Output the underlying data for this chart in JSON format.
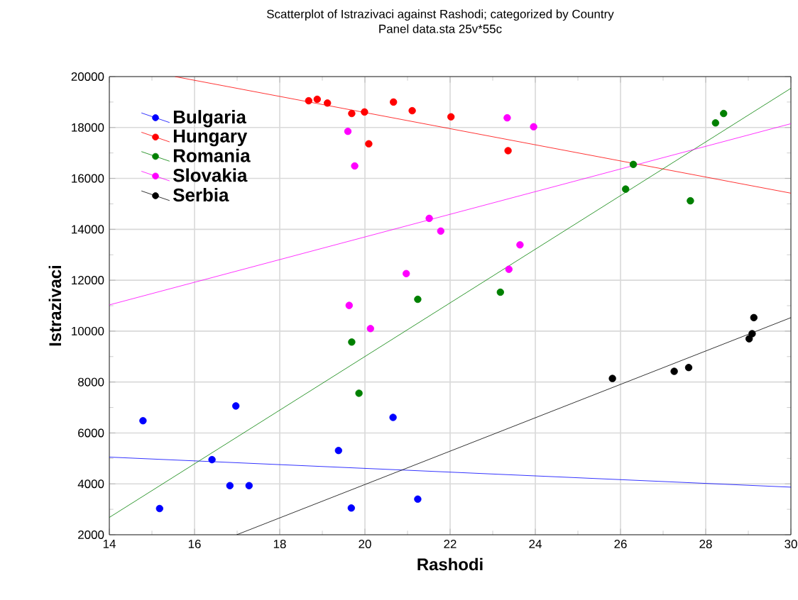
{
  "chart_data": {
    "type": "scatter",
    "title": "Scatterplot of Istrazivaci against Rashodi; categorized by Country",
    "subtitle": "Panel data.sta 25v*55c",
    "xlabel": "Rashodi",
    "ylabel": "Istrazivaci",
    "xlim": [
      14,
      30
    ],
    "ylim": [
      2000,
      20000
    ],
    "xticks": [
      14,
      16,
      18,
      20,
      22,
      24,
      26,
      28,
      30
    ],
    "yticks": [
      2000,
      4000,
      6000,
      8000,
      10000,
      12000,
      14000,
      16000,
      18000,
      20000
    ],
    "grid": true,
    "legend": "top left",
    "series": [
      {
        "name": "Bulgaria",
        "marker": "circle",
        "color": "#0000ff",
        "x": [
          14.79,
          15.18,
          16.41,
          16.83,
          16.97,
          17.28,
          19.38,
          19.68,
          20.66,
          21.24
        ],
        "values": [
          6480,
          3030,
          4950,
          3930,
          7060,
          3930,
          5310,
          3050,
          6610,
          3400
        ]
      },
      {
        "name": "Hungary",
        "marker": "circle",
        "color": "#ff0000",
        "x": [
          18.68,
          18.88,
          19.12,
          19.69,
          19.99,
          20.09,
          20.67,
          21.11,
          22.02,
          23.36
        ],
        "values": [
          19050,
          19110,
          18960,
          18550,
          18610,
          17360,
          19000,
          18660,
          18420,
          17090
        ]
      },
      {
        "name": "Romania",
        "marker": "circle",
        "color": "#008000",
        "x": [
          19.69,
          19.86,
          21.24,
          23.18,
          26.12,
          26.3,
          27.64,
          28.23,
          28.42
        ],
        "values": [
          9570,
          7560,
          11250,
          11530,
          15580,
          16550,
          15120,
          18180,
          18550
        ]
      },
      {
        "name": "Slovakia",
        "marker": "circle",
        "color": "#ff00ff",
        "x": [
          19.6,
          19.63,
          19.76,
          20.13,
          20.97,
          21.51,
          21.78,
          23.34,
          23.38,
          23.64,
          23.96
        ],
        "values": [
          17850,
          11010,
          16490,
          10100,
          12260,
          14430,
          13930,
          18380,
          12430,
          13390,
          18030
        ]
      },
      {
        "name": "Serbia",
        "marker": "circle",
        "color": "#000000",
        "x": [
          25.81,
          27.26,
          27.6,
          29.02,
          29.09,
          29.13
        ],
        "values": [
          8140,
          8420,
          8570,
          9700,
          9900,
          10530
        ]
      },
      {
        "type": "line",
        "marker": "none",
        "color": "#0000ff",
        "x": [
          14,
          30
        ],
        "values": [
          5050,
          3870
        ]
      },
      {
        "type": "line",
        "marker": "none",
        "color": "#ff0000",
        "x": [
          15.54,
          30
        ],
        "values": [
          20000,
          15420
        ]
      },
      {
        "type": "line",
        "marker": "none",
        "color": "#008000",
        "x": [
          14,
          30
        ],
        "values": [
          2680,
          19540
        ]
      },
      {
        "type": "line",
        "marker": "none",
        "color": "#ff00ff",
        "x": [
          14,
          30
        ],
        "values": [
          11030,
          18150
        ]
      },
      {
        "type": "line",
        "marker": "none",
        "color": "#000000",
        "x": [
          16.99,
          30
        ],
        "values": [
          2000,
          10530
        ]
      }
    ]
  }
}
